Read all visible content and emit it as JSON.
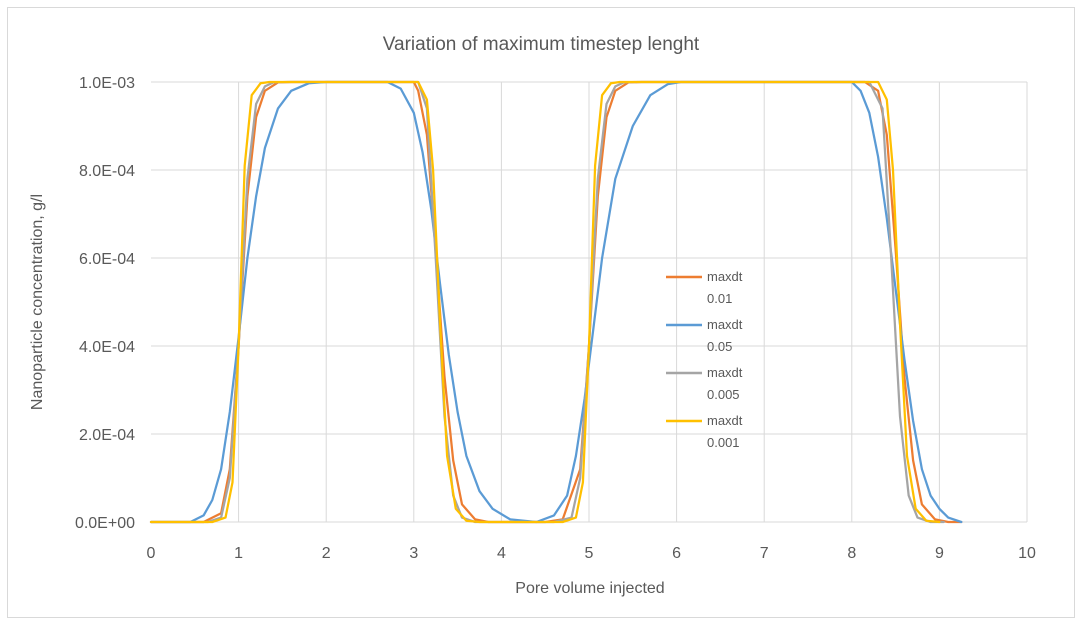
{
  "chart_data": {
    "type": "line",
    "title": "Variation of maximum timestep lenght",
    "xlabel": "Pore volume injected",
    "ylabel": "Nanoparticle concentration, g/l",
    "xlim": [
      0,
      10
    ],
    "ylim": [
      0,
      0.001
    ],
    "grid": true,
    "legend_position": "center-right",
    "x_ticks": [
      "0",
      "1",
      "2",
      "3",
      "4",
      "5",
      "6",
      "7",
      "8",
      "9",
      "10"
    ],
    "y_ticks": [
      "0.0E+00",
      "2.0E-04",
      "4.0E-04",
      "6.0E-04",
      "8.0E-04",
      "1.0E-03"
    ],
    "series": [
      {
        "name": "maxdt",
        "name_line2": "0.01",
        "color": "#ED7D31",
        "x": [
          0,
          0.6,
          0.8,
          0.9,
          1.0,
          1.1,
          1.2,
          1.3,
          1.45,
          1.6,
          3.0,
          3.05,
          3.15,
          3.25,
          3.35,
          3.45,
          3.55,
          3.7,
          3.85,
          4.5,
          4.7,
          4.9,
          5.0,
          5.1,
          5.2,
          5.3,
          5.45,
          5.6,
          8.15,
          8.3,
          8.4,
          8.5,
          8.6,
          8.7,
          8.8,
          8.95,
          9.1,
          9.25
        ],
        "y": [
          0,
          0,
          2e-05,
          0.00012,
          0.0004,
          0.00074,
          0.00092,
          0.00098,
          0.000999,
          0.001,
          0.001,
          0.00098,
          0.00088,
          0.00062,
          0.00033,
          0.00014,
          4e-05,
          6e-06,
          0,
          0,
          6e-06,
          0.00012,
          0.0004,
          0.00074,
          0.00092,
          0.00098,
          0.000999,
          0.001,
          0.001,
          0.00098,
          0.00088,
          0.00062,
          0.00033,
          0.00014,
          4e-05,
          6e-06,
          0,
          0
        ]
      },
      {
        "name": "maxdt",
        "name_line2": "0.05",
        "color": "#5B9BD5",
        "x": [
          0,
          0.45,
          0.6,
          0.7,
          0.8,
          0.9,
          1.0,
          1.1,
          1.2,
          1.3,
          1.45,
          1.6,
          1.8,
          2.0,
          2.7,
          2.85,
          3.0,
          3.1,
          3.2,
          3.3,
          3.4,
          3.5,
          3.6,
          3.75,
          3.9,
          4.1,
          4.4,
          4.6,
          4.75,
          4.85,
          4.95,
          5.05,
          5.15,
          5.3,
          5.5,
          5.7,
          5.9,
          6.05,
          8.0,
          8.1,
          8.2,
          8.3,
          8.4,
          8.5,
          8.6,
          8.7,
          8.8,
          8.9,
          9.0,
          9.1,
          9.25
        ],
        "y": [
          0,
          0,
          1.5e-05,
          5e-05,
          0.00012,
          0.00025,
          0.00042,
          0.0006,
          0.00074,
          0.00085,
          0.00094,
          0.00098,
          0.000997,
          0.001,
          0.001,
          0.000985,
          0.00093,
          0.00084,
          0.00071,
          0.00054,
          0.00038,
          0.00025,
          0.00015,
          7e-05,
          3e-05,
          6e-06,
          0,
          1.5e-05,
          6e-05,
          0.00015,
          0.00028,
          0.00044,
          0.0006,
          0.00078,
          0.0009,
          0.00097,
          0.000995,
          0.001,
          0.001,
          0.00098,
          0.00093,
          0.00083,
          0.00069,
          0.00053,
          0.00037,
          0.00023,
          0.00012,
          6e-05,
          3e-05,
          1e-05,
          0
        ]
      },
      {
        "name": "maxdt",
        "name_line2": "0.005",
        "color": "#A5A5A5",
        "x": [
          0,
          0.65,
          0.8,
          0.9,
          1.0,
          1.1,
          1.2,
          1.3,
          1.4,
          1.55,
          3.05,
          3.15,
          3.25,
          3.35,
          3.45,
          3.55,
          3.7,
          4.6,
          4.8,
          4.9,
          5.0,
          5.1,
          5.2,
          5.3,
          5.4,
          5.55,
          8.2,
          8.35,
          8.45,
          8.55,
          8.65,
          8.75,
          8.9,
          9.05
        ],
        "y": [
          0,
          0,
          1e-05,
          0.0001,
          0.0004,
          0.00078,
          0.00095,
          0.00099,
          0.000999,
          0.001,
          0.001,
          0.00094,
          0.0006,
          0.00024,
          6e-05,
          1e-05,
          0,
          0,
          1e-05,
          0.0001,
          0.0004,
          0.00078,
          0.00095,
          0.00099,
          0.000999,
          0.001,
          0.001,
          0.00094,
          0.0006,
          0.00024,
          6e-05,
          1e-05,
          0,
          0
        ]
      },
      {
        "name": "maxdt",
        "name_line2": "0.001",
        "color": "#FFC000",
        "x": [
          0,
          0.7,
          0.85,
          0.93,
          1.0,
          1.07,
          1.15,
          1.25,
          1.35,
          1.5,
          3.05,
          3.15,
          3.22,
          3.3,
          3.38,
          3.48,
          3.6,
          3.75,
          4.7,
          4.85,
          4.93,
          5.0,
          5.07,
          5.15,
          5.25,
          5.35,
          5.5,
          8.3,
          8.4,
          8.47,
          8.55,
          8.63,
          8.73,
          8.85,
          9.0
        ],
        "y": [
          0,
          0,
          1e-05,
          9e-05,
          0.0004,
          0.00081,
          0.00097,
          0.000997,
          0.001,
          0.001,
          0.001,
          0.00096,
          0.0008,
          0.00045,
          0.00015,
          3e-05,
          3e-06,
          0,
          0,
          1e-05,
          9e-05,
          0.0004,
          0.00081,
          0.00097,
          0.000997,
          0.001,
          0.001,
          0.001,
          0.00096,
          0.0008,
          0.00045,
          0.00015,
          3e-05,
          3e-06,
          0
        ]
      }
    ]
  }
}
